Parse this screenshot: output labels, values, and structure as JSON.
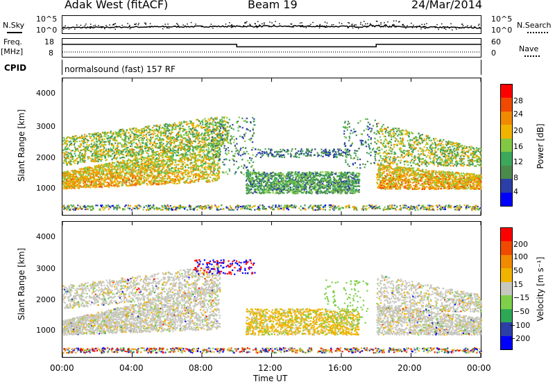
{
  "header": {
    "site": "Adak West (fitACF)",
    "beam": "Beam 19",
    "date": "24/Mar/2014"
  },
  "noise_panel": {
    "left_label": "N.Sky",
    "right_label": "N.Search",
    "left_ticks": [
      "10^5",
      "10^0"
    ],
    "right_ticks": [
      "10^5",
      "10^0"
    ]
  },
  "freq_panel": {
    "left_label_1": "Freq.",
    "left_label_2": "[MHz]",
    "right_label": "Nave",
    "left_ticks": [
      "18",
      "8"
    ],
    "right_ticks": [
      "60",
      "0"
    ]
  },
  "cpid": {
    "label": "CPID",
    "value": "normalsound (fast) 157 RF"
  },
  "power_panel": {
    "ylabel": "Slant Range [km]",
    "y_ticks": [
      "4000",
      "3000",
      "2000",
      "1000"
    ],
    "colorbar_label": "Power [dB]",
    "colorbar_ticks": [
      "28",
      "24",
      "20",
      "16",
      "12",
      "8",
      "4"
    ],
    "colors": [
      "#0000ff",
      "#2b3fa7",
      "#4b8a4b",
      "#3ca85a",
      "#82c843",
      "#f0b400",
      "#f08a00",
      "#f04a00",
      "#ff0000"
    ]
  },
  "velocity_panel": {
    "ylabel": "Slant Range [km]",
    "y_ticks": [
      "4000",
      "3000",
      "2000",
      "1000"
    ],
    "colorbar_label": "Velocity [m s⁻¹]",
    "colorbar_ticks": [
      "200",
      "100",
      "50",
      "15",
      "−15",
      "−50",
      "−100",
      "−200"
    ],
    "colors": [
      "#0000ff",
      "#2b3fa7",
      "#2ea855",
      "#7ed04a",
      "#c8c8c0",
      "#f0b400",
      "#f08a00",
      "#f04a00",
      "#ff0000"
    ]
  },
  "x_axis": {
    "label": "Time UT",
    "ticks": [
      "00:00",
      "04:00",
      "08:00",
      "12:00",
      "16:00",
      "20:00",
      "00:00"
    ]
  },
  "chart_data": {
    "type": "heatmap",
    "x_range_hours": [
      0,
      24
    ],
    "y_range_km": [
      180,
      4500
    ],
    "frequency_mhz": [
      {
        "from_hour": 0,
        "to_hour": 10,
        "value": 13
      },
      {
        "from_hour": 10,
        "to_hour": 18,
        "value": 10.5
      },
      {
        "from_hour": 18,
        "to_hour": 24,
        "value": 13
      }
    ],
    "power_regions": [
      {
        "name": "ground-scatter-morning",
        "from_hour": 0,
        "to_hour": 8.5,
        "range_km": [
          900,
          1500
        ],
        "power_db": 28
      },
      {
        "name": "upper-band-morning",
        "from_hour": 0,
        "to_hour": 9.5,
        "range_km": [
          1800,
          2600
        ],
        "power_db": 20
      },
      {
        "name": "midday-band",
        "from_hour": 10.5,
        "to_hour": 16.5,
        "range_km": [
          800,
          1500
        ],
        "power_db": 14
      },
      {
        "name": "evening-ground-scatter",
        "from_hour": 18,
        "to_hour": 24,
        "range_km": [
          900,
          1400
        ],
        "power_db": 28
      },
      {
        "name": "evening-upper",
        "from_hour": 18,
        "to_hour": 24,
        "range_km": [
          1600,
          2800
        ],
        "power_db": 20
      }
    ],
    "velocity_regions": [
      {
        "name": "ground-scatter-morning",
        "from_hour": 0,
        "to_hour": 9,
        "range_km": [
          800,
          2500
        ],
        "velocity": 0
      },
      {
        "name": "midday-band",
        "from_hour": 10.5,
        "to_hour": 16.5,
        "range_km": [
          800,
          1700
        ],
        "velocity": -20
      },
      {
        "name": "evening-ground-scatter",
        "from_hour": 18,
        "to_hour": 24,
        "range_km": [
          800,
          2700
        ],
        "velocity": 0
      }
    ]
  }
}
